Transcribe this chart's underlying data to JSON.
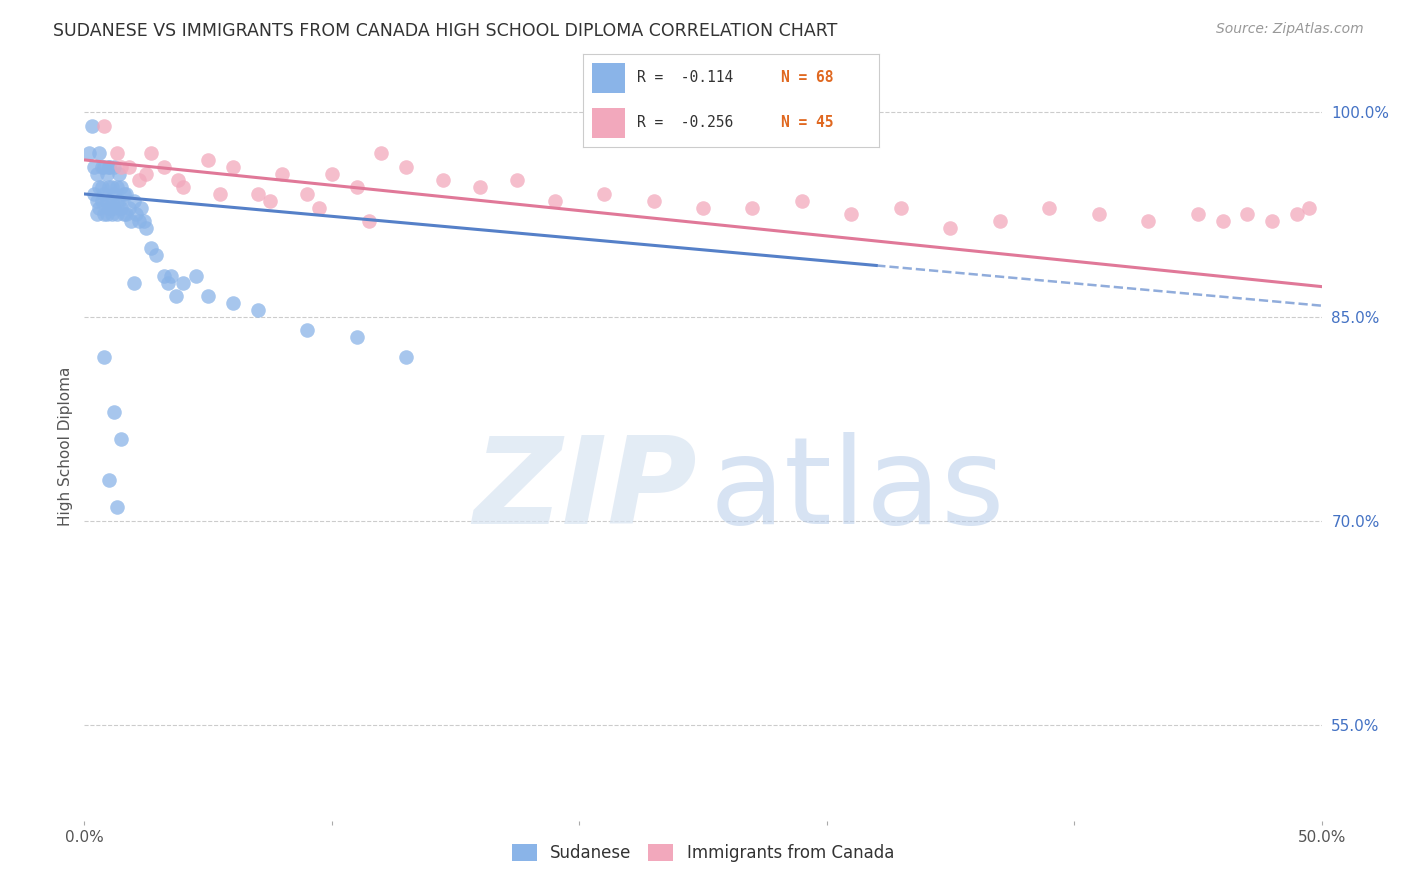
{
  "title": "SUDANESE VS IMMIGRANTS FROM CANADA HIGH SCHOOL DIPLOMA CORRELATION CHART",
  "source": "Source: ZipAtlas.com",
  "ylabel": "High School Diploma",
  "xlim": [
    0.0,
    0.5
  ],
  "ylim": [
    0.48,
    1.03
  ],
  "ytick_positions_right": [
    1.0,
    0.85,
    0.7,
    0.55
  ],
  "ytick_labels_right": [
    "100.0%",
    "85.0%",
    "70.0%",
    "55.0%"
  ],
  "blue_R": "-0.114",
  "blue_N": "68",
  "pink_R": "-0.256",
  "pink_N": "45",
  "blue_color": "#8ab4e8",
  "pink_color": "#f2a8bc",
  "blue_line_color": "#5580c8",
  "pink_line_color": "#e07898",
  "grid_color": "#cccccc",
  "legend_label_blue": "Sudanese",
  "legend_label_pink": "Immigrants from Canada",
  "blue_scatter_x": [
    0.002,
    0.003,
    0.004,
    0.004,
    0.005,
    0.005,
    0.005,
    0.006,
    0.006,
    0.006,
    0.007,
    0.007,
    0.007,
    0.008,
    0.008,
    0.008,
    0.009,
    0.009,
    0.009,
    0.01,
    0.01,
    0.01,
    0.01,
    0.011,
    0.011,
    0.011,
    0.012,
    0.012,
    0.012,
    0.013,
    0.013,
    0.013,
    0.014,
    0.014,
    0.015,
    0.015,
    0.016,
    0.016,
    0.017,
    0.017,
    0.018,
    0.019,
    0.02,
    0.021,
    0.022,
    0.023,
    0.024,
    0.025,
    0.027,
    0.029,
    0.032,
    0.034,
    0.037,
    0.04,
    0.045,
    0.05,
    0.06,
    0.07,
    0.09,
    0.11,
    0.13,
    0.008,
    0.02,
    0.035,
    0.012,
    0.015,
    0.01,
    0.013
  ],
  "blue_scatter_y": [
    0.97,
    0.99,
    0.96,
    0.94,
    0.935,
    0.925,
    0.955,
    0.945,
    0.93,
    0.97,
    0.96,
    0.945,
    0.935,
    0.925,
    0.96,
    0.94,
    0.955,
    0.935,
    0.925,
    0.96,
    0.945,
    0.93,
    0.96,
    0.945,
    0.935,
    0.925,
    0.96,
    0.94,
    0.93,
    0.945,
    0.935,
    0.925,
    0.955,
    0.935,
    0.945,
    0.93,
    0.94,
    0.925,
    0.94,
    0.925,
    0.93,
    0.92,
    0.935,
    0.925,
    0.92,
    0.93,
    0.92,
    0.915,
    0.9,
    0.895,
    0.88,
    0.875,
    0.865,
    0.875,
    0.88,
    0.865,
    0.86,
    0.855,
    0.84,
    0.835,
    0.82,
    0.82,
    0.875,
    0.88,
    0.78,
    0.76,
    0.73,
    0.71
  ],
  "pink_scatter_x": [
    0.008,
    0.013,
    0.018,
    0.022,
    0.027,
    0.032,
    0.038,
    0.05,
    0.06,
    0.07,
    0.08,
    0.09,
    0.1,
    0.11,
    0.12,
    0.13,
    0.145,
    0.16,
    0.175,
    0.19,
    0.21,
    0.23,
    0.25,
    0.27,
    0.29,
    0.31,
    0.33,
    0.35,
    0.37,
    0.39,
    0.41,
    0.43,
    0.45,
    0.46,
    0.47,
    0.48,
    0.49,
    0.495,
    0.015,
    0.025,
    0.04,
    0.055,
    0.075,
    0.095,
    0.115
  ],
  "pink_scatter_y": [
    0.99,
    0.97,
    0.96,
    0.95,
    0.97,
    0.96,
    0.95,
    0.965,
    0.96,
    0.94,
    0.955,
    0.94,
    0.955,
    0.945,
    0.97,
    0.96,
    0.95,
    0.945,
    0.95,
    0.935,
    0.94,
    0.935,
    0.93,
    0.93,
    0.935,
    0.925,
    0.93,
    0.915,
    0.92,
    0.93,
    0.925,
    0.92,
    0.925,
    0.92,
    0.925,
    0.92,
    0.925,
    0.93,
    0.96,
    0.955,
    0.945,
    0.94,
    0.935,
    0.93,
    0.92
  ]
}
